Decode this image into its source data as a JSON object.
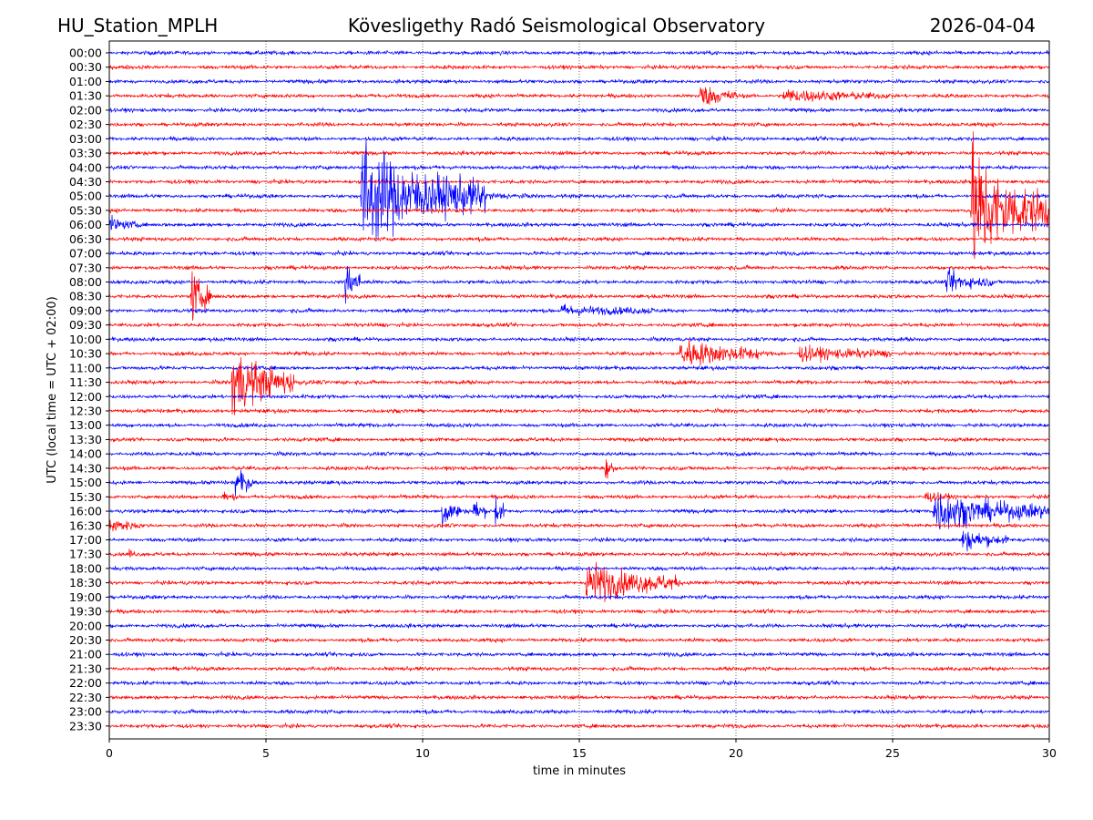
{
  "chart_data": {
    "type": "line",
    "title_left": "HU_Station_MPLH",
    "title": "Kövesligethy Radó Seismological Observatory",
    "title_right": "2026-04-04",
    "xlabel": "time in minutes",
    "ylabel": "UTC (local time = UTC + 02:00)",
    "xlim": [
      0,
      30
    ],
    "xticks": [
      "0",
      "5",
      "10",
      "15",
      "20",
      "25",
      "30"
    ],
    "xgrid": "dotted",
    "row_labels": [
      "00:00",
      "00:30",
      "01:00",
      "01:30",
      "02:00",
      "02:30",
      "03:00",
      "03:30",
      "04:00",
      "04:30",
      "05:00",
      "05:30",
      "06:00",
      "06:30",
      "07:00",
      "07:30",
      "08:00",
      "08:30",
      "09:00",
      "09:30",
      "10:00",
      "10:30",
      "11:00",
      "11:30",
      "12:00",
      "12:30",
      "13:00",
      "13:30",
      "14:00",
      "14:30",
      "15:00",
      "15:30",
      "16:00",
      "16:30",
      "17:00",
      "17:30",
      "18:00",
      "18:30",
      "19:00",
      "19:30",
      "20:00",
      "20:30",
      "21:00",
      "21:30",
      "22:00",
      "22:30",
      "23:00",
      "23:30"
    ],
    "colors": [
      "#0000ff",
      "#ff0000"
    ],
    "noise_amplitude": 0.12,
    "events": [
      {
        "row": "01:30",
        "start_min": 18.8,
        "amp": 0.7,
        "dur_min": 1.2
      },
      {
        "row": "01:30",
        "start_min": 21.5,
        "amp": 0.35,
        "dur_min": 3.5
      },
      {
        "row": "05:00",
        "start_min": 8.0,
        "amp": 3.0,
        "dur_min": 4.0
      },
      {
        "row": "05:30",
        "start_min": 27.5,
        "amp": 3.6,
        "dur_min": 2.5
      },
      {
        "row": "06:00",
        "start_min": 0.0,
        "amp": 0.4,
        "dur_min": 1.0
      },
      {
        "row": "08:00",
        "start_min": 7.5,
        "amp": 1.5,
        "dur_min": 0.5
      },
      {
        "row": "08:00",
        "start_min": 26.7,
        "amp": 0.6,
        "dur_min": 1.5
      },
      {
        "row": "08:30",
        "start_min": 2.6,
        "amp": 1.7,
        "dur_min": 0.6
      },
      {
        "row": "09:00",
        "start_min": 14.4,
        "amp": 0.3,
        "dur_min": 3.0
      },
      {
        "row": "10:30",
        "start_min": 18.2,
        "amp": 0.9,
        "dur_min": 2.5
      },
      {
        "row": "10:30",
        "start_min": 22.0,
        "amp": 0.4,
        "dur_min": 3.0
      },
      {
        "row": "11:30",
        "start_min": 3.9,
        "amp": 2.0,
        "dur_min": 2.0
      },
      {
        "row": "14:30",
        "start_min": 15.8,
        "amp": 0.8,
        "dur_min": 0.3
      },
      {
        "row": "15:00",
        "start_min": 4.0,
        "amp": 1.0,
        "dur_min": 0.6
      },
      {
        "row": "15:30",
        "start_min": 3.6,
        "amp": 0.3,
        "dur_min": 0.5
      },
      {
        "row": "15:30",
        "start_min": 26.0,
        "amp": 0.3,
        "dur_min": 0.8
      },
      {
        "row": "16:00",
        "start_min": 10.6,
        "amp": 1.1,
        "dur_min": 0.6
      },
      {
        "row": "16:00",
        "start_min": 11.6,
        "amp": 0.8,
        "dur_min": 0.4
      },
      {
        "row": "16:00",
        "start_min": 12.3,
        "amp": 1.2,
        "dur_min": 0.3
      },
      {
        "row": "16:00",
        "start_min": 26.3,
        "amp": 1.1,
        "dur_min": 3.7
      },
      {
        "row": "16:30",
        "start_min": 0.0,
        "amp": 0.4,
        "dur_min": 1.0
      },
      {
        "row": "17:00",
        "start_min": 27.2,
        "amp": 0.6,
        "dur_min": 1.5
      },
      {
        "row": "17:30",
        "start_min": 0.6,
        "amp": 0.4,
        "dur_min": 0.2
      },
      {
        "row": "18:30",
        "start_min": 15.2,
        "amp": 1.2,
        "dur_min": 3.0
      }
    ]
  }
}
